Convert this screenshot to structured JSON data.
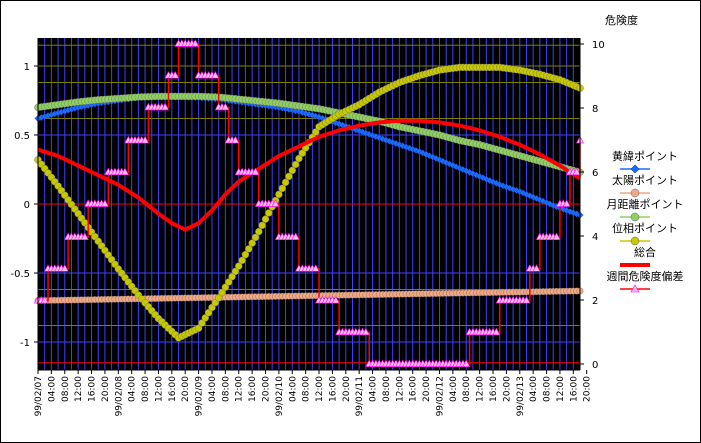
{
  "chart_data": {
    "type": "line",
    "right_axis_title": "危険度",
    "y_left": {
      "min": -1.15,
      "max": 1.2,
      "ticks": [
        -1,
        -0.5,
        0,
        0.5,
        1
      ],
      "tick_labels": [
        "-1",
        "-0.5",
        "0",
        "0.5",
        "1"
      ]
    },
    "y_right": {
      "min": 0,
      "max": 10,
      "ticks": [
        0,
        2,
        4,
        6,
        8,
        10
      ],
      "tick_labels": [
        "0",
        "2",
        "4",
        "6",
        "8",
        "10"
      ]
    },
    "x_range": [
      0,
      162
    ],
    "x_tick_labels": [
      "99/02/07",
      "04:00",
      "08:00",
      "12:00",
      "16:00",
      "20:00",
      "99/02/08",
      "04:00",
      "08:00",
      "12:00",
      "16:00",
      "20:00",
      "99/02/09",
      "04:00",
      "08:00",
      "12:00",
      "16:00",
      "20:00",
      "99/02/10",
      "04:00",
      "08:00",
      "12:00",
      "16:00",
      "20:00",
      "99/02/11",
      "04:00",
      "08:00",
      "12:00",
      "16:00",
      "20:00",
      "99/02/12",
      "04:00",
      "08:00",
      "12:00",
      "16:00",
      "20:00",
      "99/02/13",
      "04:00",
      "08:00",
      "12:00",
      "16:00",
      "20:00"
    ],
    "plot_background": "#000000",
    "colors": {
      "grid_vertical": "#4040ff",
      "grid_horizontal_dark": "#808000",
      "grid_horizontal_blue": "#4040ff",
      "grid_horizontal_red": "#ff0000"
    },
    "series": [
      {
        "name": "黄緯ポイント",
        "axis": "left",
        "style": "markers",
        "color": "#1e6cff",
        "marker": "diamond",
        "x": [
          0,
          6,
          12,
          18,
          24,
          30,
          36,
          42,
          48,
          54,
          60,
          66,
          72,
          78,
          84,
          90,
          96,
          102,
          108,
          114,
          120,
          126,
          132,
          138,
          144,
          150,
          156,
          162
        ],
        "y": [
          0.62,
          0.66,
          0.7,
          0.73,
          0.75,
          0.77,
          0.775,
          0.775,
          0.77,
          0.76,
          0.74,
          0.72,
          0.7,
          0.67,
          0.63,
          0.58,
          0.53,
          0.48,
          0.43,
          0.38,
          0.32,
          0.26,
          0.2,
          0.14,
          0.09,
          0.03,
          -0.03,
          -0.08
        ]
      },
      {
        "name": "太陽ポイント",
        "axis": "left",
        "style": "markers",
        "color": "#f4a882",
        "marker": "circle",
        "x": [
          0,
          162
        ],
        "y": [
          -0.7,
          -0.63
        ]
      },
      {
        "name": "月距離ポイント",
        "axis": "left",
        "style": "markers",
        "color": "#90d060",
        "marker": "circle",
        "x": [
          0,
          6,
          12,
          18,
          24,
          30,
          36,
          42,
          48,
          54,
          60,
          66,
          72,
          78,
          84,
          90,
          96,
          102,
          108,
          114,
          120,
          126,
          132,
          138,
          144,
          150,
          156,
          162
        ],
        "y": [
          0.7,
          0.72,
          0.74,
          0.755,
          0.765,
          0.775,
          0.78,
          0.78,
          0.78,
          0.775,
          0.76,
          0.745,
          0.73,
          0.71,
          0.69,
          0.66,
          0.63,
          0.6,
          0.56,
          0.53,
          0.5,
          0.46,
          0.43,
          0.39,
          0.35,
          0.31,
          0.27,
          0.23
        ]
      },
      {
        "name": "位相ポイント",
        "axis": "left",
        "style": "markers",
        "color": "#c8c800",
        "marker": "circle",
        "x": [
          0,
          6,
          12,
          18,
          24,
          30,
          36,
          42,
          48,
          52,
          54,
          60,
          66,
          72,
          78,
          84,
          90,
          96,
          102,
          108,
          114,
          120,
          126,
          132,
          138,
          144,
          150,
          156,
          162
        ],
        "y": [
          0.32,
          0.13,
          -0.07,
          -0.27,
          -0.47,
          -0.66,
          -0.83,
          -0.97,
          -0.9,
          -0.75,
          -0.68,
          -0.45,
          -0.2,
          0.07,
          0.33,
          0.56,
          0.65,
          0.72,
          0.81,
          0.88,
          0.93,
          0.97,
          0.99,
          0.99,
          0.99,
          0.97,
          0.94,
          0.9,
          0.84
        ]
      },
      {
        "name": "総合",
        "axis": "right",
        "style": "line",
        "color": "#ff0000",
        "x": [
          0,
          6,
          12,
          18,
          24,
          30,
          36,
          40,
          44,
          48,
          52,
          56,
          60,
          66,
          72,
          78,
          84,
          90,
          96,
          102,
          108,
          114,
          120,
          126,
          132,
          138,
          144,
          150,
          156,
          162
        ],
        "y": [
          6.7,
          6.5,
          6.2,
          5.9,
          5.6,
          5.2,
          4.7,
          4.4,
          4.2,
          4.4,
          4.8,
          5.3,
          5.7,
          6.1,
          6.5,
          6.8,
          7.1,
          7.3,
          7.45,
          7.55,
          7.6,
          7.6,
          7.55,
          7.45,
          7.3,
          7.1,
          6.85,
          6.55,
          6.2,
          5.8
        ]
      },
      {
        "name": "週間危険度偏差",
        "axis": "left",
        "style": "step",
        "color": "#ff0000",
        "marker": "triangle",
        "x": [
          0,
          3,
          6,
          9,
          12,
          15,
          18,
          21,
          24,
          27,
          30,
          33,
          36,
          39,
          42,
          45,
          48,
          51,
          54,
          57,
          60,
          63,
          66,
          69,
          72,
          75,
          78,
          81,
          84,
          87,
          90,
          93,
          96,
          99,
          102,
          105,
          108,
          111,
          114,
          117,
          120,
          123,
          126,
          129,
          132,
          135,
          138,
          141,
          144,
          147,
          150,
          153,
          156,
          159,
          162
        ],
        "y": [
          -0.7,
          -0.47,
          -0.47,
          -0.24,
          -0.24,
          0.0,
          0.0,
          0.23,
          0.23,
          0.46,
          0.46,
          0.7,
          0.7,
          0.93,
          1.16,
          1.16,
          0.93,
          0.93,
          0.7,
          0.46,
          0.23,
          0.23,
          0.0,
          0.0,
          -0.24,
          -0.24,
          -0.47,
          -0.47,
          -0.7,
          -0.7,
          -0.93,
          -0.93,
          -0.93,
          -1.16,
          -1.16,
          -1.16,
          -1.16,
          -1.16,
          -1.16,
          -1.16,
          -1.16,
          -1.16,
          -1.16,
          -0.93,
          -0.93,
          -0.93,
          -0.7,
          -0.7,
          -0.7,
          -0.47,
          -0.24,
          -0.24,
          0.0,
          0.23,
          0.46
        ]
      }
    ]
  }
}
